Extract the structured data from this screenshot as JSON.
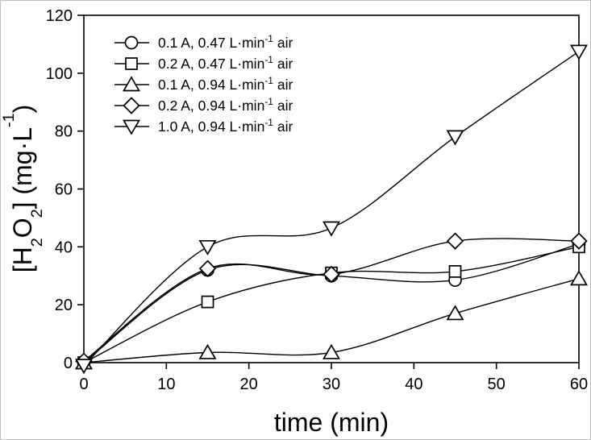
{
  "figure": {
    "background": "#ffffff",
    "line_color": "#000000",
    "marker_fill": "#ffffff",
    "text_color": "#000000"
  },
  "chart_data": {
    "type": "line",
    "title": "",
    "xlabel": "time (min)",
    "ylabel": "[H2O2] (mg·L-1)",
    "ylabel_parts": [
      {
        "text": "[H",
        "style": ""
      },
      {
        "text": "2",
        "style": "sub"
      },
      {
        "text": "O",
        "style": ""
      },
      {
        "text": "2",
        "style": "sub"
      },
      {
        "text": "] (mg·L",
        "style": ""
      },
      {
        "text": "-1",
        "style": "sup"
      },
      {
        "text": ")",
        "style": ""
      }
    ],
    "xlim": [
      0,
      60
    ],
    "ylim": [
      0,
      120
    ],
    "x_ticks": [
      0,
      10,
      20,
      30,
      40,
      50,
      60
    ],
    "y_ticks": [
      0,
      20,
      40,
      60,
      80,
      100,
      120
    ],
    "grid": false,
    "legend_position": "upper-left-inside",
    "x": [
      0,
      15,
      30,
      45,
      60
    ],
    "series": [
      {
        "name": "0.1 A, 0.47 L·min-1 air",
        "label_pre": "0.1 A, 0.47 L·min",
        "label_sup": "-1",
        "label_post": " air",
        "marker": "circle",
        "values": [
          0,
          32,
          30,
          28.5,
          41
        ]
      },
      {
        "name": "0.2 A, 0.47 L·min-1 air",
        "label_pre": "0.2 A, 0.47 L·min",
        "label_sup": "-1",
        "label_post": " air",
        "marker": "square",
        "values": [
          0,
          21,
          31,
          31.5,
          40
        ]
      },
      {
        "name": "0.1 A, 0.94 L·min-1 air",
        "label_pre": "0.1 A, 0.94 L·min",
        "label_sup": "-1",
        "label_post": " air",
        "marker": "triangle-up",
        "values": [
          0,
          3.5,
          3.5,
          17,
          29
        ]
      },
      {
        "name": "0.2 A, 0.94 L·min-1 air",
        "label_pre": "0.2 A, 0.94 L·min",
        "label_sup": "-1",
        "label_post": " air",
        "marker": "diamond",
        "values": [
          0.5,
          32.5,
          30.5,
          42,
          42
        ]
      },
      {
        "name": "1.0 A, 0.94 L·min-1 air",
        "label_pre": "1.0 A, 0.94 L·min",
        "label_sup": "-1",
        "label_post": " air",
        "marker": "triangle-down",
        "values": [
          -1,
          40,
          46.5,
          78,
          107.5
        ]
      }
    ]
  }
}
